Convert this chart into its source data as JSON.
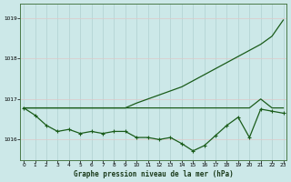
{
  "bg_color": "#cce8e8",
  "grid_color": "#b0d0d0",
  "line_color": "#1a5c1a",
  "title": "Graphe pression niveau de la mer (hPa)",
  "ylim": [
    1015.5,
    1019.35
  ],
  "xlim": [
    -0.3,
    23.3
  ],
  "yticks": [
    1016,
    1017,
    1018,
    1019
  ],
  "xticks": [
    0,
    1,
    2,
    3,
    4,
    5,
    6,
    7,
    8,
    9,
    10,
    11,
    12,
    13,
    14,
    15,
    16,
    17,
    18,
    19,
    20,
    21,
    22,
    23
  ],
  "series_diagonal": [
    1016.78,
    1016.78,
    1016.78,
    1016.78,
    1016.78,
    1016.78,
    1016.78,
    1016.78,
    1016.78,
    1016.78,
    1016.9,
    1017.0,
    1017.1,
    1017.2,
    1017.3,
    1017.45,
    1017.6,
    1017.75,
    1017.9,
    1018.05,
    1018.2,
    1018.35,
    1018.55,
    1018.95
  ],
  "series_flat": [
    1016.78,
    1016.78,
    1016.78,
    1016.78,
    1016.78,
    1016.78,
    1016.78,
    1016.78,
    1016.78,
    1016.78,
    1016.78,
    1016.78,
    1016.78,
    1016.78,
    1016.78,
    1016.78,
    1016.78,
    1016.78,
    1016.78,
    1016.78,
    1016.78,
    1017.0,
    1016.78,
    1016.78
  ],
  "series_markers": [
    1016.78,
    1016.6,
    1016.35,
    1016.2,
    1016.25,
    1016.15,
    1016.2,
    1016.15,
    1016.2,
    1016.2,
    1016.05,
    1016.05,
    1016.0,
    1016.05,
    1015.9,
    1015.72,
    1015.85,
    1016.1,
    1016.35,
    1016.55,
    1016.05,
    1016.75,
    1016.7,
    1016.65
  ]
}
